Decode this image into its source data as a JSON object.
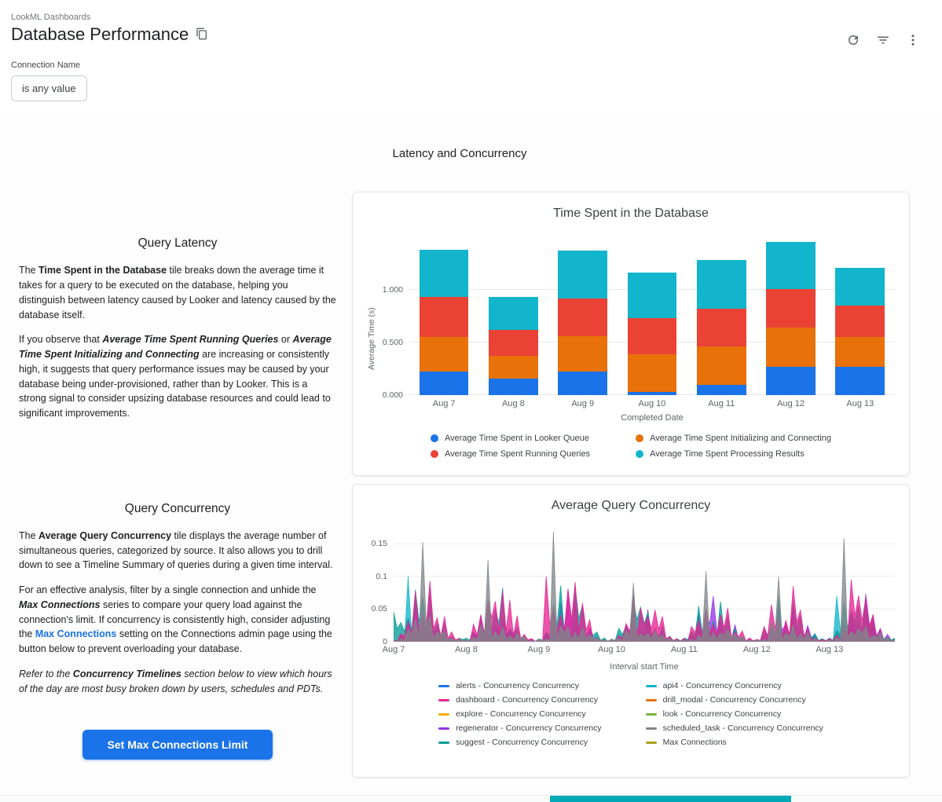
{
  "accent": "#1a73e8",
  "header": {
    "breadcrumb": "LookML Dashboards",
    "title": "Database Performance",
    "actions": [
      "refresh-icon",
      "filter-icon",
      "more-vert-icon"
    ]
  },
  "filter": {
    "label": "Connection Name",
    "value": "is any value"
  },
  "section_title": "Latency and Concurrency",
  "query_latency": {
    "heading": "Query Latency",
    "paragraphs": [
      [
        {
          "t": "The "
        },
        {
          "t": "Time Spent in the Database",
          "b": true
        },
        {
          "t": " tile breaks down the average time it takes for a query to be executed on the database, helping you distinguish between latency caused by Looker and latency caused by the database itself."
        }
      ],
      [
        {
          "t": "If you observe that "
        },
        {
          "t": "Average Time Spent Running Queries",
          "b": true,
          "i": true
        },
        {
          "t": " or "
        },
        {
          "t": "Average Time Spent Initializing and Connecting",
          "b": true,
          "i": true
        },
        {
          "t": " are increasing or consistently high, it suggests that query performance issues may be caused by your database being under-provisioned, rather than by Looker. This is a strong signal to consider upsizing database resources and could lead to significant improvements."
        }
      ]
    ]
  },
  "query_concurrency": {
    "heading": "Query Concurrency",
    "paragraphs": [
      [
        {
          "t": "The "
        },
        {
          "t": "Average Query Concurrency",
          "b": true
        },
        {
          "t": " tile displays the average number of simultaneous queries, categorized by source. It also allows you to drill down to see a Timeline Summary of queries during a given time interval."
        }
      ],
      [
        {
          "t": "For an effective analysis, filter by a single connection and unhide the "
        },
        {
          "t": "Max Connections",
          "b": true,
          "i": true
        },
        {
          "t": " series to compare your query load against the connection's limit. If concurrency is consistently high, consider adjusting the "
        },
        {
          "t": "Max Connections",
          "l": true
        },
        {
          "t": " setting on the Connections admin page using the button below to prevent overloading your database."
        }
      ],
      [
        {
          "t": "Refer to the ",
          "i": true
        },
        {
          "t": "Concurrency Timelines",
          "b": true,
          "i": true
        },
        {
          "t": " section below to view which hours of the day are most busy broken down by users, schedules and PDTs.",
          "i": true
        }
      ]
    ],
    "button_label": "Set Max Connections Limit"
  },
  "chart_data": [
    {
      "type": "bar",
      "stacked": true,
      "title": "Time Spent in the Database",
      "xlabel": "Completed Date",
      "ylabel": "Average Time (s)",
      "categories": [
        "Aug 7",
        "Aug 8",
        "Aug 9",
        "Aug 10",
        "Aug 11",
        "Aug 12",
        "Aug 13"
      ],
      "ylim": [
        0,
        1.55
      ],
      "y_ticks": [
        {
          "v": 0,
          "label": "0.000"
        },
        {
          "v": 0.5,
          "label": "0.500"
        },
        {
          "v": 1.0,
          "label": "1.000"
        }
      ],
      "grid": true,
      "legend_position": "bottom",
      "series": [
        {
          "name": "Average Time Spent in Looker Queue",
          "color": "#1a73e8",
          "values": [
            0.22,
            0.16,
            0.22,
            0.03,
            0.1,
            0.27,
            0.27
          ]
        },
        {
          "name": "Average Time Spent Initializing and Connecting",
          "color": "#e8710a",
          "values": [
            0.33,
            0.21,
            0.34,
            0.36,
            0.36,
            0.37,
            0.28
          ]
        },
        {
          "name": "Average Time Spent Running Queries",
          "color": "#ea4335",
          "values": [
            0.38,
            0.25,
            0.36,
            0.34,
            0.36,
            0.37,
            0.3
          ]
        },
        {
          "name": "Average Time Spent Processing Results",
          "color": "#12b5cb",
          "values": [
            0.45,
            0.31,
            0.45,
            0.43,
            0.46,
            0.44,
            0.36
          ]
        }
      ]
    },
    {
      "type": "area",
      "title": "Average Query Concurrency",
      "xlabel": "Interval start Time",
      "ylabel": "",
      "x_ticks": [
        "Aug 7",
        "Aug 8",
        "Aug 9",
        "Aug 10",
        "Aug 11",
        "Aug 12",
        "Aug 13"
      ],
      "points_per_day": 10,
      "n_points": 70,
      "ymax": 0.18,
      "y_ticks": [
        {
          "v": 0,
          "label": "0"
        },
        {
          "v": 0.05,
          "label": "0.05"
        },
        {
          "v": 0.1,
          "label": "0.1"
        },
        {
          "v": 0.15,
          "label": "0.15"
        }
      ],
      "grid": true,
      "legend_position": "bottom",
      "draw_order": [
        4,
        5,
        0,
        3,
        1,
        6,
        8,
        2,
        7,
        9
      ],
      "series": [
        {
          "legend": "alerts - Concurrency Concurrency",
          "color": "#1a73e8",
          "pattern": [
            0.001,
            0.005,
            0.012,
            0.018,
            0.01,
            0.016,
            0.012,
            0.008,
            0.004,
            0.001
          ],
          "scale": [
            1,
            1,
            1.1,
            0.9,
            1,
            0.95,
            1.05
          ],
          "spikes": []
        },
        {
          "legend": "api4 - Concurrency Concurrency",
          "color": "#12b5cb",
          "pattern": [
            0.002,
            0.008,
            0.02,
            0.03,
            0.018,
            0.028,
            0.022,
            0.012,
            0.006,
            0.002
          ],
          "scale": [
            1,
            0.9,
            1,
            0.85,
            1,
            0.9,
            1.05
          ],
          "spikes": [
            [
              2,
              0.1
            ],
            [
              61,
              0.07
            ]
          ]
        },
        {
          "legend": "dashboard - Concurrency Concurrency",
          "color": "#e52592",
          "pattern": [
            0.004,
            0.018,
            0.045,
            0.062,
            0.05,
            0.072,
            0.048,
            0.03,
            0.012,
            0.004
          ],
          "scale": [
            0.9,
            1,
            1.05,
            0.85,
            1,
            0.9,
            1.1
          ],
          "spikes": [
            [
              21,
              0.1
            ],
            [
              63,
              0.095
            ]
          ]
        },
        {
          "legend": "drill_modal - Concurrency Concurrency",
          "color": "#e8710a",
          "pattern": [
            0.001,
            0.006,
            0.014,
            0.02,
            0.012,
            0.018,
            0.014,
            0.008,
            0.004,
            0.001
          ],
          "scale": [
            1,
            1,
            1,
            1,
            1,
            1,
            1
          ],
          "spikes": []
        },
        {
          "legend": "explore - Concurrency Concurrency",
          "color": "#f9ab00",
          "pattern": [
            0.002,
            0.008,
            0.018,
            0.026,
            0.016,
            0.024,
            0.018,
            0.01,
            0.005,
            0.002
          ],
          "scale": [
            1,
            1,
            1,
            1,
            1,
            1,
            1
          ],
          "spikes": []
        },
        {
          "legend": "look - Concurrency Concurrency",
          "color": "#7cb342",
          "pattern": [
            0.001,
            0.005,
            0.01,
            0.015,
            0.009,
            0.013,
            0.01,
            0.006,
            0.003,
            0.001
          ],
          "scale": [
            1,
            1,
            1,
            1,
            1,
            1,
            1
          ],
          "spikes": []
        },
        {
          "legend": "regenerator - Concurrency Concurrency",
          "color": "#9334e6",
          "pattern": [
            0.002,
            0.01,
            0.03,
            0.046,
            0.025,
            0.05,
            0.03,
            0.018,
            0.008,
            0.003
          ],
          "scale": [
            0.9,
            1,
            0.95,
            0.8,
            1,
            0.9,
            1
          ],
          "spikes": [
            [
              24,
              0.08
            ],
            [
              44,
              0.07
            ]
          ]
        },
        {
          "legend": "scheduled_task - Concurrency Concurrency",
          "color": "#80868b",
          "pattern": [
            0.003,
            0.008,
            0.02,
            0.032,
            0.016,
            0.026,
            0.02,
            0.012,
            0.006,
            0.003
          ],
          "scale": [
            1,
            1,
            1,
            1,
            1,
            1,
            1
          ],
          "spikes": [
            [
              4,
              0.152
            ],
            [
              13,
              0.125
            ],
            [
              22,
              0.168
            ],
            [
              33,
              0.09
            ],
            [
              43,
              0.108
            ],
            [
              53,
              0.1
            ],
            [
              62,
              0.158
            ]
          ]
        },
        {
          "legend": "suggest - Concurrency Concurrency",
          "color": "#079c98",
          "pattern": [
            0.005,
            0.02,
            0.04,
            0.056,
            0.045,
            0.06,
            0.04,
            0.025,
            0.01,
            0.004
          ],
          "scale": [
            1,
            0.9,
            1,
            0.8,
            0.95,
            0.85,
            1
          ],
          "spikes": [
            [
              0,
              0.046
            ]
          ]
        },
        {
          "legend": "Max Connections",
          "color": "#a8a116",
          "hidden": true,
          "pattern": [
            0,
            0,
            0,
            0,
            0,
            0,
            0,
            0,
            0,
            0
          ],
          "scale": [
            1,
            1,
            1,
            1,
            1,
            1,
            1
          ],
          "spikes": []
        }
      ]
    }
  ],
  "peek_color": "#00a9b7"
}
